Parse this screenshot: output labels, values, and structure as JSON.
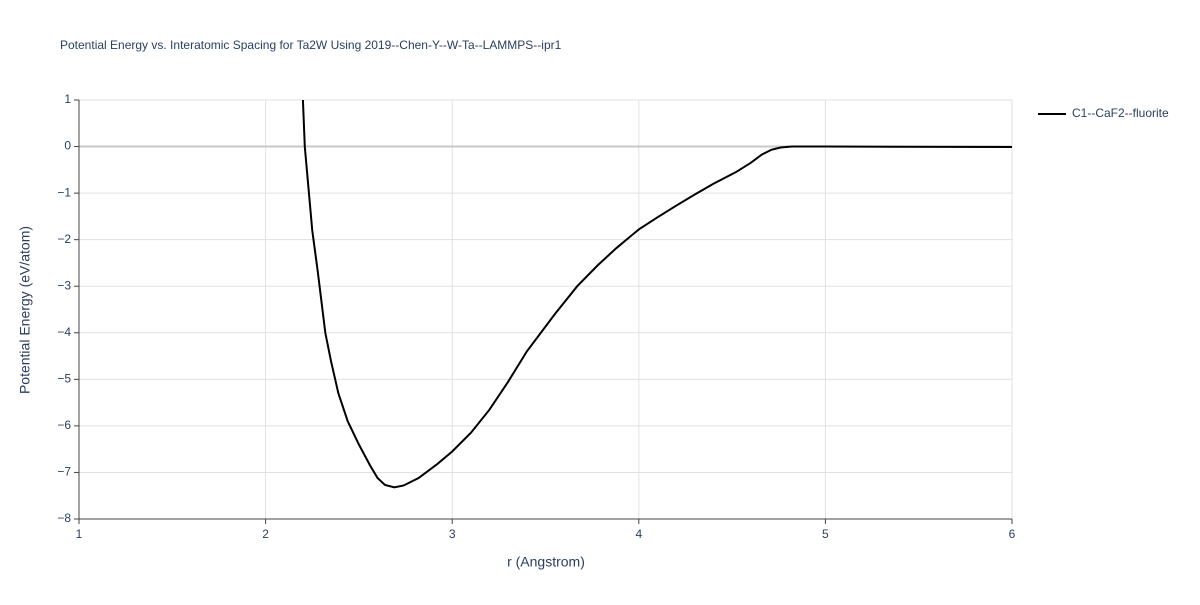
{
  "chart_data": {
    "type": "line",
    "title": "Potential Energy vs. Interatomic Spacing for Ta2W Using 2019--Chen-Y--W-Ta--LAMMPS--ipr1",
    "x_label": "r (Angstrom)",
    "y_label": "Potential Energy (eV/atom)",
    "xlim": [
      1,
      6
    ],
    "xticks": [
      1,
      2,
      3,
      4,
      5,
      6
    ],
    "ylim": [
      -8,
      1
    ],
    "yticks": [
      {
        "value": -8,
        "label": "−8"
      },
      {
        "value": -7,
        "label": "−7"
      },
      {
        "value": -6,
        "label": "−6"
      },
      {
        "value": -5,
        "label": "−5"
      },
      {
        "value": -4,
        "label": "−4"
      },
      {
        "value": -3,
        "label": "−3"
      },
      {
        "value": -2,
        "label": "−2"
      },
      {
        "value": -1,
        "label": "−1"
      },
      0,
      1
    ],
    "grid": true,
    "legend": "top-right",
    "series": [
      {
        "name": "C1--CaF2--fluorite",
        "color": "#000000",
        "x": [
          2.2,
          2.21,
          2.25,
          2.28,
          2.32,
          2.35,
          2.39,
          2.44,
          2.5,
          2.56,
          2.6,
          2.64,
          2.69,
          2.74,
          2.82,
          2.92,
          3.0,
          3.1,
          3.2,
          3.3,
          3.4,
          3.55,
          3.67,
          3.78,
          3.88,
          4.0,
          4.1,
          4.2,
          4.3,
          4.4,
          4.52,
          4.6,
          4.66,
          4.71,
          4.76,
          4.82,
          5.0,
          6.0
        ],
        "values": [
          1,
          0,
          -1.8,
          -2.7,
          -4.0,
          -4.6,
          -5.3,
          -5.9,
          -6.4,
          -6.85,
          -7.12,
          -7.27,
          -7.32,
          -7.28,
          -7.12,
          -6.82,
          -6.55,
          -6.15,
          -5.65,
          -5.05,
          -4.4,
          -3.6,
          -3.0,
          -2.55,
          -2.18,
          -1.78,
          -1.52,
          -1.27,
          -1.03,
          -0.8,
          -0.55,
          -0.35,
          -0.17,
          -0.07,
          -0.02,
          0,
          0,
          -0.01
        ]
      }
    ]
  }
}
